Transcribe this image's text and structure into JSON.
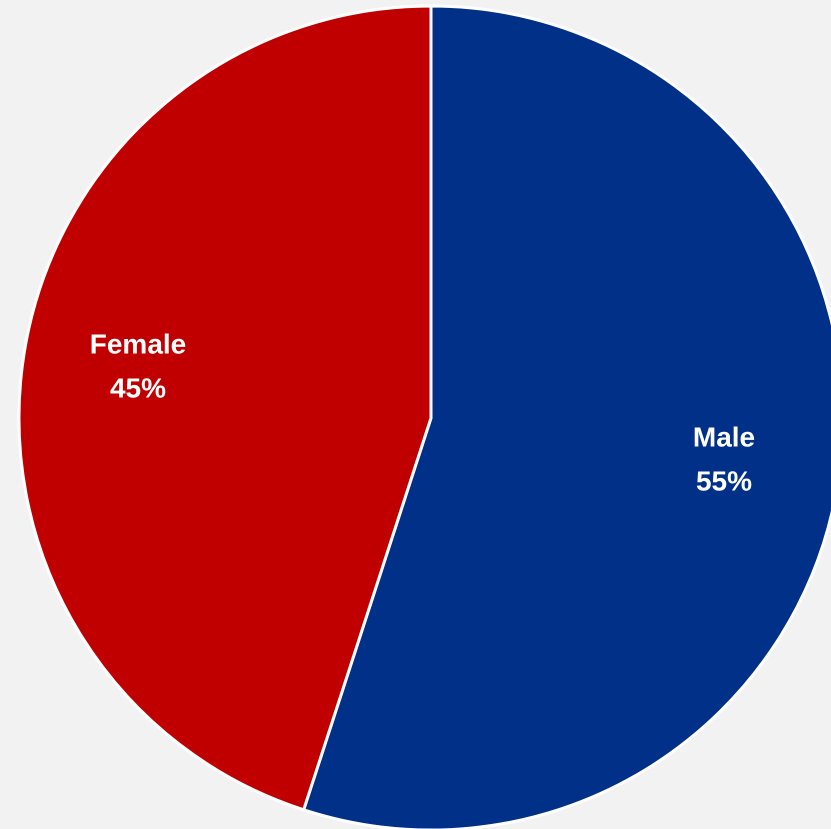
{
  "chart_data": {
    "type": "pie",
    "categories": [
      "Male",
      "Female"
    ],
    "values": [
      55,
      45
    ],
    "labels": [
      {
        "name": "Male",
        "percent": "55%"
      },
      {
        "name": "Female",
        "percent": "45%"
      }
    ],
    "colors": [
      "#003087",
      "#c00000"
    ],
    "title": "",
    "legend": "none"
  },
  "colors": {
    "background": "#f2f2f2",
    "separator": "#ffffff"
  }
}
